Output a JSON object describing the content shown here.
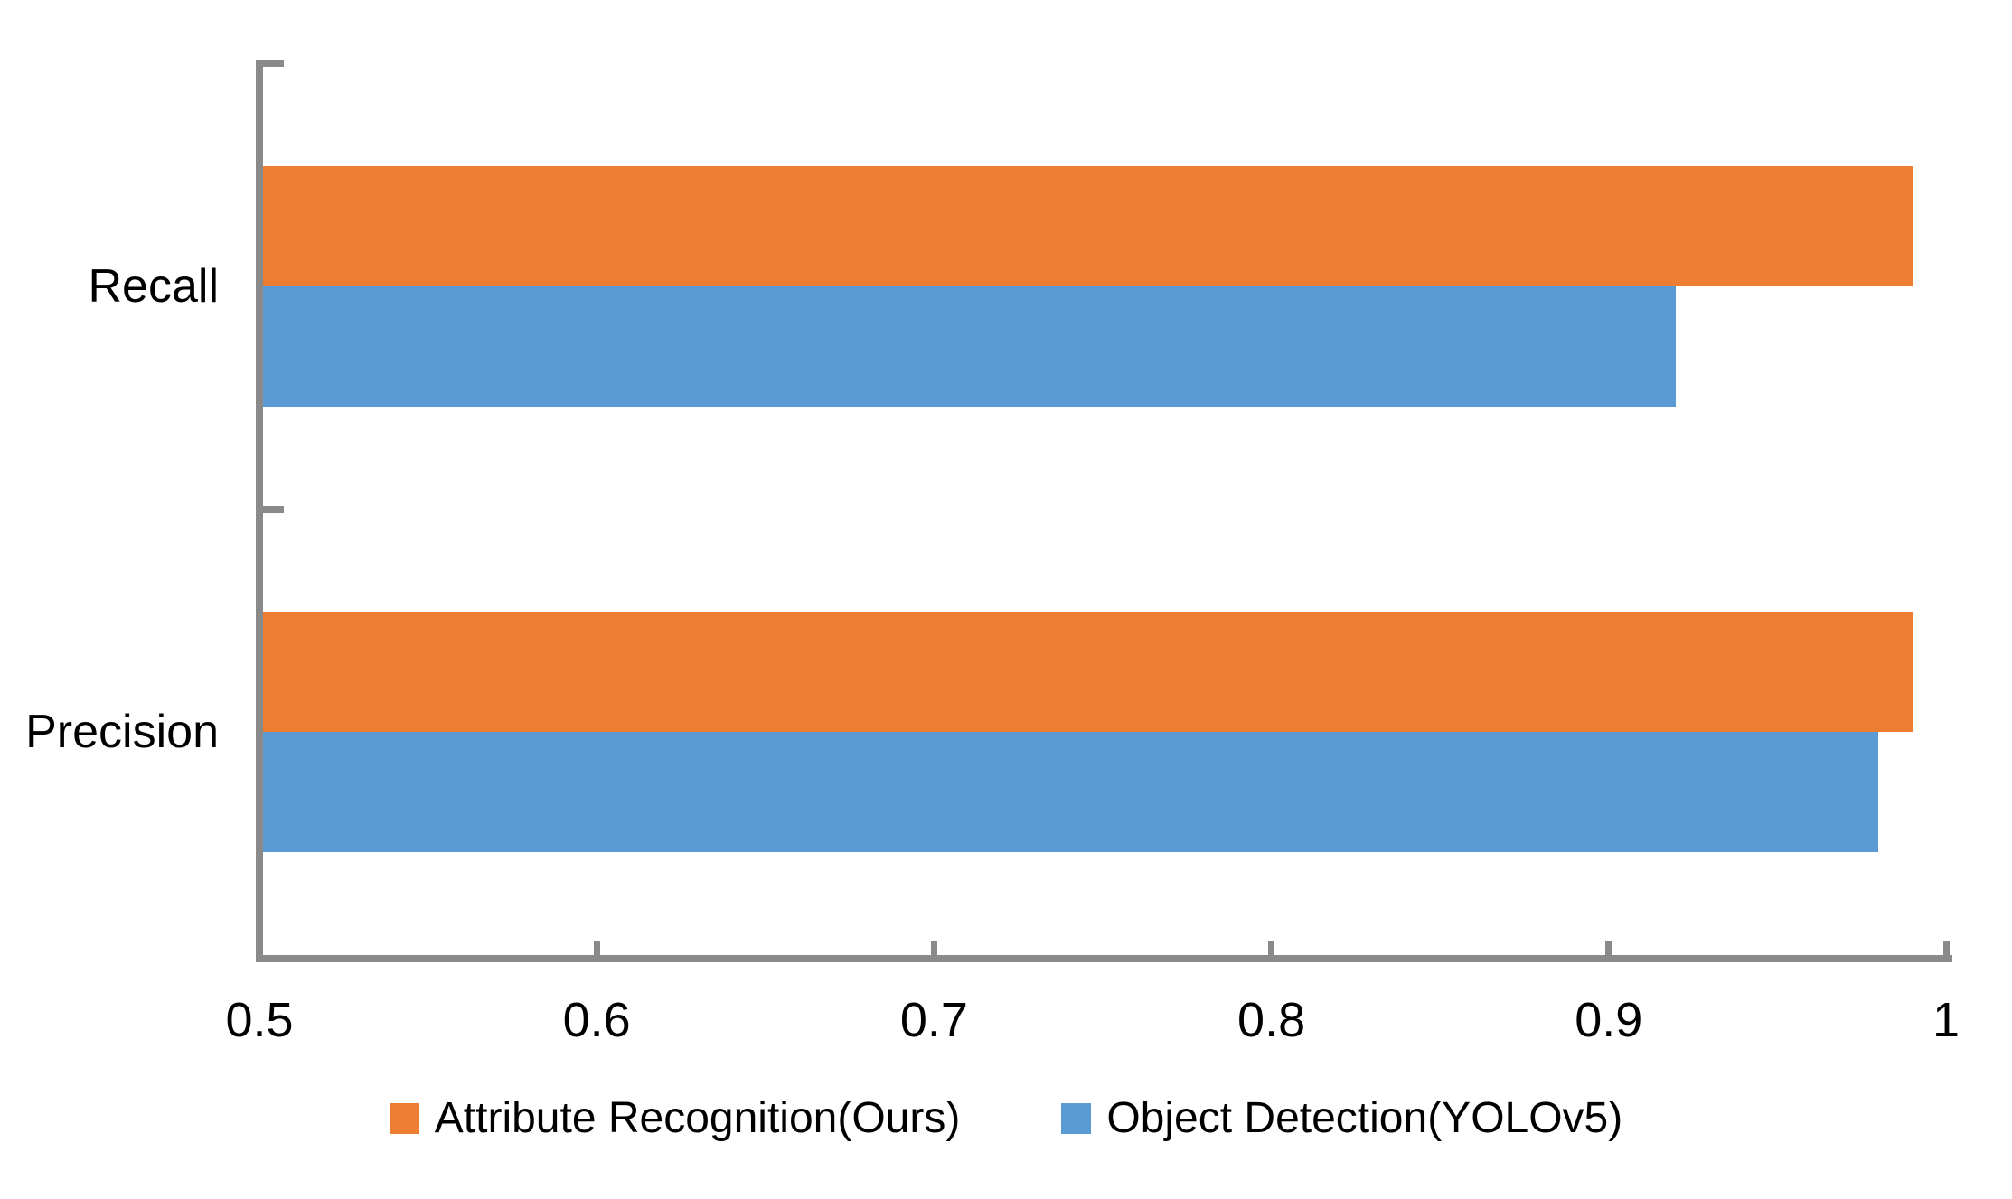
{
  "chart_data": {
    "type": "bar",
    "orientation": "horizontal",
    "title": "",
    "xlabel": "",
    "ylabel": "",
    "categories": [
      "Recall",
      "Precision"
    ],
    "series": [
      {
        "name": "Attribute Recognition(Ours)",
        "color": "#ED7D31",
        "values": [
          0.99,
          0.99
        ]
      },
      {
        "name": "Object Detection(YOLOv5)",
        "color": "#5B9BD5",
        "values": [
          0.92,
          0.98
        ]
      }
    ],
    "xlim": [
      0.5,
      1.0
    ],
    "xticks": [
      0.5,
      0.6,
      0.7,
      0.8,
      0.9,
      1.0
    ],
    "xtick_labels": [
      "0.5",
      "0.6",
      "0.7",
      "0.8",
      "0.9",
      "1"
    ],
    "grid": false,
    "legend_position": "bottom-center",
    "colors": {
      "axis": "#8a8a8a",
      "text": "#000000",
      "background": "#ffffff"
    }
  }
}
